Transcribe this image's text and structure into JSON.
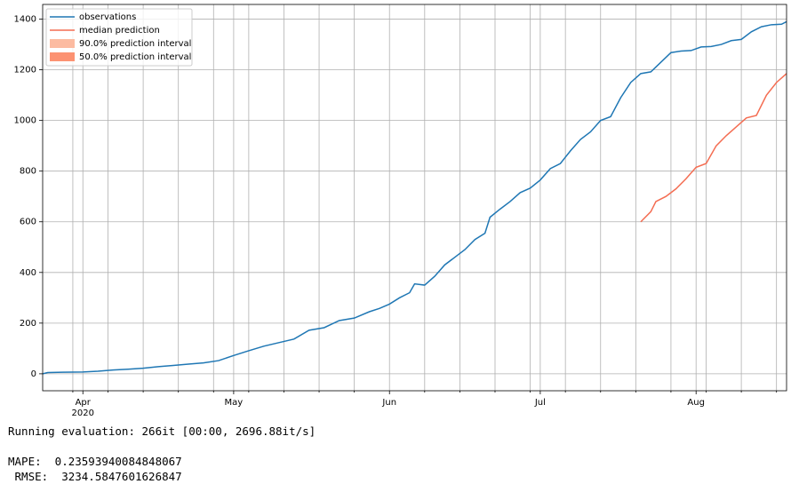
{
  "chart_data": {
    "type": "line",
    "series": [
      {
        "name": "observations",
        "kind": "line",
        "color": "#1f77b4",
        "x": [
          84,
          85,
          88,
          92,
          95,
          98,
          101,
          104,
          107,
          110,
          113,
          116,
          119,
          122,
          125,
          128,
          131,
          134,
          137,
          140,
          143,
          146,
          149,
          151,
          153,
          155,
          157,
          158,
          160,
          162,
          164,
          166,
          168,
          170,
          172,
          173,
          175,
          177,
          179,
          181,
          183,
          185,
          187,
          189,
          191,
          193,
          195,
          197,
          199,
          201,
          203,
          205,
          207,
          209,
          211,
          213,
          215,
          217,
          219,
          221,
          223,
          225,
          227,
          229,
          231,
          232
        ],
        "values": [
          0,
          5,
          6,
          7,
          10,
          15,
          18,
          22,
          28,
          33,
          38,
          43,
          52,
          72,
          91,
          109,
          123,
          137,
          172,
          182,
          210,
          220,
          245,
          258,
          275,
          300,
          320,
          355,
          350,
          385,
          430,
          460,
          490,
          530,
          555,
          618,
          650,
          680,
          715,
          733,
          765,
          810,
          830,
          880,
          925,
          955,
          1000,
          1015,
          1090,
          1150,
          1185,
          1192,
          1230,
          1268,
          1274,
          1276,
          1290,
          1292,
          1300,
          1315,
          1320,
          1350,
          1370,
          1378,
          1380,
          1390
        ]
      },
      {
        "name": "median prediction",
        "kind": "line",
        "color": "#f46d52",
        "x": [
          203,
          205,
          206,
          208,
          210,
          212,
          214,
          216,
          218,
          220,
          222,
          224,
          226,
          228,
          230,
          232
        ],
        "values": [
          600,
          640,
          680,
          700,
          730,
          770,
          815,
          830,
          900,
          940,
          975,
          1010,
          1020,
          1100,
          1150,
          1185
        ]
      },
      {
        "name": "90.0% prediction interval",
        "kind": "band",
        "color": "#fcbba1"
      },
      {
        "name": "50.0% prediction interval",
        "kind": "band",
        "color": "#fc9272"
      }
    ],
    "xlim": [
      84,
      232
    ],
    "xticks": [
      {
        "value": 92,
        "label": "Apr\n2020"
      },
      {
        "value": 122,
        "label": "May"
      },
      {
        "value": 153,
        "label": "Jun"
      },
      {
        "value": 183,
        "label": "Jul"
      },
      {
        "value": 214,
        "label": "Aug"
      }
    ],
    "x_minor_ticks": [
      90,
      97,
      104,
      111,
      118,
      125,
      132,
      139,
      146,
      160,
      167,
      174,
      181,
      188,
      195,
      202,
      209,
      216,
      223,
      230
    ],
    "ylim": [
      -67,
      1458
    ],
    "yticks": [
      0,
      200,
      400,
      600,
      800,
      1000,
      1200,
      1400
    ],
    "grid": true,
    "legend": "upper left"
  },
  "console": [
    "Running evaluation: 266it [00:00, 2696.88it/s]",
    "MAPE:  0.23593940084848067",
    " RMSE:  3234.5847601626847"
  ]
}
